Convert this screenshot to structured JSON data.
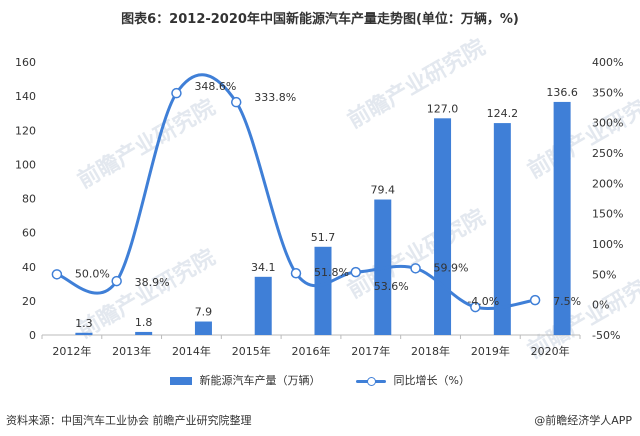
{
  "title": "图表6：2012-2020年中国新能源汽车产量走势图(单位：万辆，%)",
  "source": "资料来源：中国汽车工业协会 前瞻产业研究院整理",
  "brand": "@前瞻经济学人APP",
  "watermark": "前瞻产业研究院",
  "colors": {
    "bar": "#3f7fd7",
    "line": "#3f7fd7",
    "text": "#333333",
    "axis": "#bbbbbb"
  },
  "chart_data": {
    "type": "bar",
    "categories": [
      "2012年",
      "2013年",
      "2014年",
      "2015年",
      "2016年",
      "2017年",
      "2018年",
      "2019年",
      "2020年"
    ],
    "series": [
      {
        "name": "新能源汽车产量（万辆）",
        "type": "bar",
        "axis": "left",
        "values": [
          1.3,
          1.8,
          7.9,
          34.1,
          51.7,
          79.4,
          127.0,
          124.2,
          136.6
        ],
        "labels": [
          "1.3",
          "1.8",
          "7.9",
          "34.1",
          "51.7",
          "79.4",
          "127.0",
          "124.2",
          "136.6"
        ]
      },
      {
        "name": "同比增长（%）",
        "type": "line",
        "axis": "right",
        "values": [
          50.0,
          38.9,
          348.6,
          333.8,
          51.8,
          53.6,
          59.9,
          -4.0,
          7.5
        ],
        "labels": [
          "50.0%",
          "38.9%",
          "348.6%",
          "333.8%",
          "51.8%",
          "53.6%",
          "59.9%",
          "-4.0%",
          "7.5%"
        ]
      }
    ],
    "y_left": {
      "min": 0,
      "max": 160,
      "ticks": [
        "0",
        "20",
        "40",
        "60",
        "80",
        "100",
        "120",
        "140",
        "160"
      ]
    },
    "y_right": {
      "min": -50,
      "max": 400,
      "ticks": [
        "-50%",
        "0%",
        "50%",
        "100%",
        "150%",
        "200%",
        "250%",
        "300%",
        "350%",
        "400%"
      ]
    },
    "legend_position": "bottom",
    "grid": false
  }
}
